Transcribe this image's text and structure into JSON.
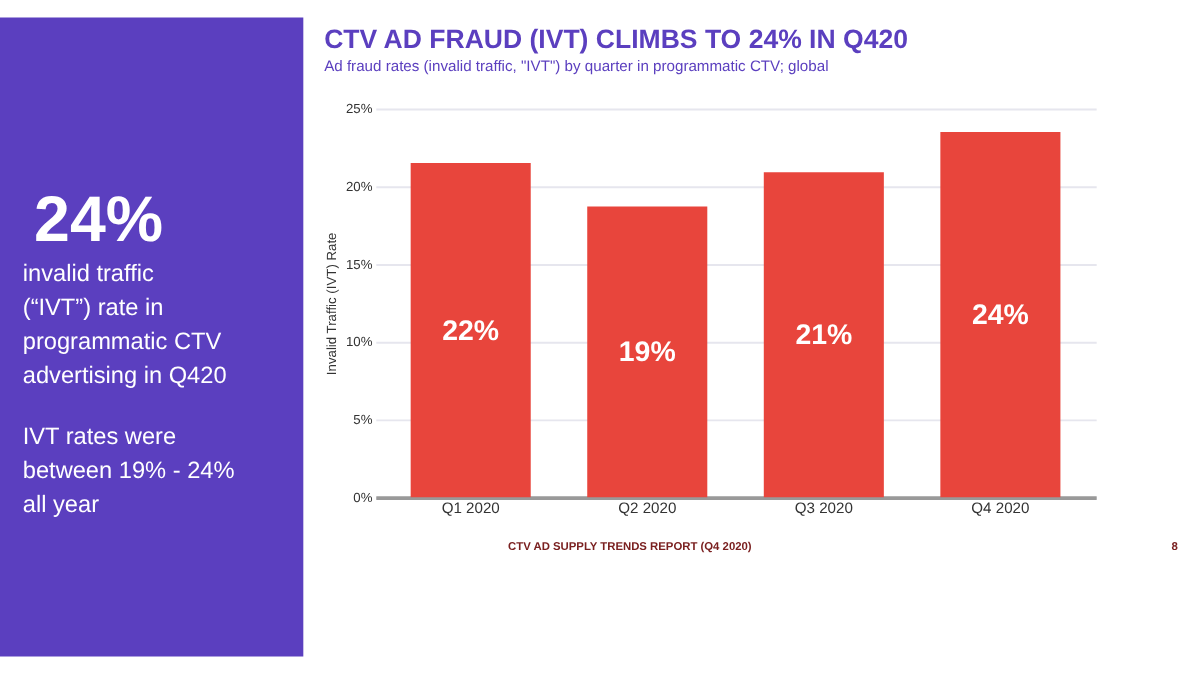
{
  "chart_data": {
    "type": "bar",
    "title": "CTV AD FRAUD (IVT) CLIMBS TO 24% IN Q420",
    "subtitle": "Ad fraud rates (invalid traffic, \"IVT\") by quarter in programmatic CTV; global",
    "categories": [
      "Q1 2020",
      "Q2 2020",
      "Q3 2020",
      "Q4 2020"
    ],
    "values": [
      21.5,
      18.7,
      20.9,
      23.5
    ],
    "value_labels": [
      "22%",
      "19%",
      "21%",
      "24%"
    ],
    "color": "#e8453c",
    "ylabel": "Invalid Traffic (IVT) Rate",
    "ylim": [
      0,
      25
    ],
    "yticks": [
      {
        "value": 0,
        "label": "0%"
      },
      {
        "value": 5,
        "label": "5%"
      },
      {
        "value": 10,
        "label": "10%"
      },
      {
        "value": 15,
        "label": "15%"
      },
      {
        "value": 20,
        "label": "20%"
      },
      {
        "value": 25,
        "label": "25%"
      }
    ],
    "grid": "y",
    "annotations": [
      "24%",
      "invalid traffic (“IVT”) rate in programmatic CTV advertising in Q420",
      "IVT rates were between 19% - 24% all year",
      "CTV AD SUPPLY TRENDS REPORT (Q4 2020)",
      "8"
    ]
  }
}
